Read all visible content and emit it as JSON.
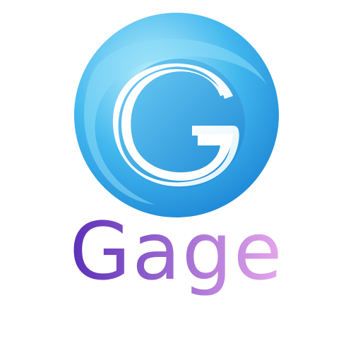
{
  "brand": {
    "name": "Gage",
    "emblem_letter": "G"
  },
  "colors": {
    "background": "#ffffff",
    "orb_light": "#b7ecfb",
    "orb_mid": "#42b8ee",
    "orb_dark": "#1e88d6",
    "swirl_white": "#ffffff",
    "wordmark_start": "#5a2fb8",
    "wordmark_end": "#e6a8ec"
  },
  "icons": {
    "emblem": "swirl-g-orb-icon"
  }
}
